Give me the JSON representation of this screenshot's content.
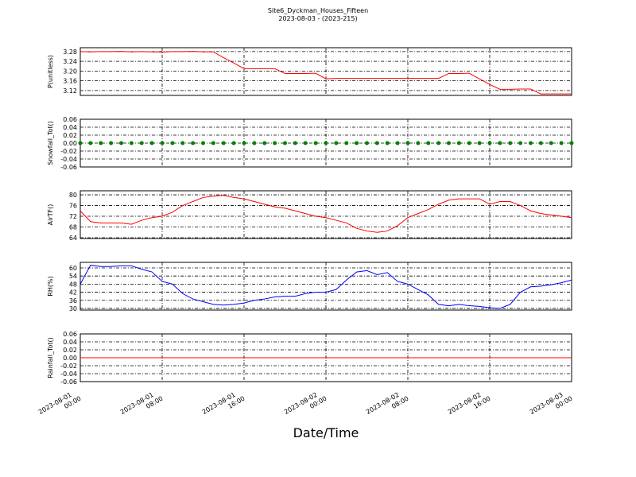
{
  "chart_data": [
    {
      "type": "line",
      "title": "Site6_Dyckman_Houses_Fifteen",
      "subtitle": "2023-08-03 - (2023-215)",
      "ylabel": "P(unitless)",
      "color": "#ff0000",
      "grid": true,
      "x": [
        "2023-08-01 00:00",
        "2023-08-01 01:00",
        "2023-08-01 02:00",
        "2023-08-01 03:00",
        "2023-08-01 04:00",
        "2023-08-01 05:00",
        "2023-08-01 06:00",
        "2023-08-01 07:00",
        "2023-08-01 08:00",
        "2023-08-01 09:00",
        "2023-08-01 10:00",
        "2023-08-01 11:00",
        "2023-08-01 12:00",
        "2023-08-01 13:00",
        "2023-08-01 14:00",
        "2023-08-01 15:00",
        "2023-08-01 16:00",
        "2023-08-01 17:00",
        "2023-08-01 18:00",
        "2023-08-01 19:00",
        "2023-08-01 20:00",
        "2023-08-01 21:00",
        "2023-08-01 22:00",
        "2023-08-01 23:00",
        "2023-08-02 00:00",
        "2023-08-02 01:00",
        "2023-08-02 02:00",
        "2023-08-02 03:00",
        "2023-08-02 04:00",
        "2023-08-02 05:00",
        "2023-08-02 06:00",
        "2023-08-02 07:00",
        "2023-08-02 08:00",
        "2023-08-02 09:00",
        "2023-08-02 10:00",
        "2023-08-02 11:00",
        "2023-08-02 12:00",
        "2023-08-02 13:00",
        "2023-08-02 14:00",
        "2023-08-02 15:00",
        "2023-08-02 16:00",
        "2023-08-02 17:00",
        "2023-08-02 18:00",
        "2023-08-02 19:00",
        "2023-08-02 20:00",
        "2023-08-02 21:00",
        "2023-08-02 22:00",
        "2023-08-02 23:00",
        "2023-08-03 00:00"
      ],
      "values": [
        3.28,
        3.279,
        3.28,
        3.28,
        3.281,
        3.279,
        3.28,
        3.279,
        3.278,
        3.28,
        3.28,
        3.281,
        3.279,
        3.279,
        3.255,
        3.233,
        3.21,
        3.21,
        3.21,
        3.21,
        3.19,
        3.19,
        3.19,
        3.191,
        3.168,
        3.17,
        3.17,
        3.17,
        3.17,
        3.17,
        3.17,
        3.17,
        3.17,
        3.17,
        3.17,
        3.17,
        3.19,
        3.19,
        3.191,
        3.168,
        3.145,
        3.125,
        3.125,
        3.126,
        3.126,
        3.106,
        3.106,
        3.106,
        3.106
      ],
      "xlim": [
        "2023-08-01 00:00",
        "2023-08-03 00:00"
      ],
      "xticks": [
        "2023-08-01 00:00",
        "2023-08-01 08:00",
        "2023-08-01 16:00",
        "2023-08-02 00:00",
        "2023-08-02 08:00",
        "2023-08-02 16:00",
        "2023-08-03 00:00"
      ],
      "ylim": [
        3.1,
        3.296
      ],
      "yticks": [
        3.12,
        3.16,
        {
          "value": 3.2,
          "label": "3.20"
        },
        3.24,
        3.28
      ]
    },
    {
      "type": "scatter",
      "ylabel": "Snowfall_Tot()",
      "color": "#008000",
      "grid": true,
      "x": [
        "2023-08-01 00:00",
        "2023-08-01 01:00",
        "2023-08-01 02:00",
        "2023-08-01 03:00",
        "2023-08-01 04:00",
        "2023-08-01 05:00",
        "2023-08-01 06:00",
        "2023-08-01 07:00",
        "2023-08-01 08:00",
        "2023-08-01 09:00",
        "2023-08-01 10:00",
        "2023-08-01 11:00",
        "2023-08-01 12:00",
        "2023-08-01 13:00",
        "2023-08-01 14:00",
        "2023-08-01 15:00",
        "2023-08-01 16:00",
        "2023-08-01 17:00",
        "2023-08-01 18:00",
        "2023-08-01 19:00",
        "2023-08-01 20:00",
        "2023-08-01 21:00",
        "2023-08-01 22:00",
        "2023-08-01 23:00",
        "2023-08-02 00:00",
        "2023-08-02 01:00",
        "2023-08-02 02:00",
        "2023-08-02 03:00",
        "2023-08-02 04:00",
        "2023-08-02 05:00",
        "2023-08-02 06:00",
        "2023-08-02 07:00",
        "2023-08-02 08:00",
        "2023-08-02 09:00",
        "2023-08-02 10:00",
        "2023-08-02 11:00",
        "2023-08-02 12:00",
        "2023-08-02 13:00",
        "2023-08-02 14:00",
        "2023-08-02 15:00",
        "2023-08-02 16:00",
        "2023-08-02 17:00",
        "2023-08-02 18:00",
        "2023-08-02 19:00",
        "2023-08-02 20:00",
        "2023-08-02 21:00",
        "2023-08-02 22:00",
        "2023-08-02 23:00",
        "2023-08-03 00:00"
      ],
      "values": [
        0,
        0,
        0,
        0,
        0,
        0,
        0,
        0,
        0,
        0,
        0,
        0,
        0,
        0,
        0,
        0,
        0,
        0,
        0,
        0,
        0,
        0,
        0,
        0,
        0,
        0,
        0,
        0,
        0,
        0,
        0,
        0,
        0,
        0,
        0,
        0,
        0,
        0,
        0,
        0,
        0,
        0,
        0,
        0,
        0,
        0,
        0,
        0,
        0
      ],
      "xlim": [
        "2023-08-01 00:00",
        "2023-08-03 00:00"
      ],
      "xticks": [
        "2023-08-01 00:00",
        "2023-08-01 08:00",
        "2023-08-01 16:00",
        "2023-08-02 00:00",
        "2023-08-02 08:00",
        "2023-08-02 16:00",
        "2023-08-03 00:00"
      ],
      "ylim": [
        -0.06,
        0.06
      ],
      "yticks": [
        -0.06,
        -0.04,
        -0.02,
        {
          "value": 0,
          "label": "0.00"
        },
        0.02,
        0.04,
        0.06
      ]
    },
    {
      "type": "line",
      "ylabel": "AirTF()",
      "color": "#ff0000",
      "grid": true,
      "x": [
        "2023-08-01 00:00",
        "2023-08-01 01:00",
        "2023-08-01 02:00",
        "2023-08-01 03:00",
        "2023-08-01 04:00",
        "2023-08-01 05:00",
        "2023-08-01 06:00",
        "2023-08-01 07:00",
        "2023-08-01 08:00",
        "2023-08-01 09:00",
        "2023-08-01 10:00",
        "2023-08-01 11:00",
        "2023-08-01 12:00",
        "2023-08-01 13:00",
        "2023-08-01 14:00",
        "2023-08-01 15:00",
        "2023-08-01 16:00",
        "2023-08-01 17:00",
        "2023-08-01 18:00",
        "2023-08-01 19:00",
        "2023-08-01 20:00",
        "2023-08-01 21:00",
        "2023-08-01 22:00",
        "2023-08-01 23:00",
        "2023-08-02 00:00",
        "2023-08-02 01:00",
        "2023-08-02 02:00",
        "2023-08-02 03:00",
        "2023-08-02 04:00",
        "2023-08-02 05:00",
        "2023-08-02 06:00",
        "2023-08-02 07:00",
        "2023-08-02 08:00",
        "2023-08-02 09:00",
        "2023-08-02 10:00",
        "2023-08-02 11:00",
        "2023-08-02 12:00",
        "2023-08-02 13:00",
        "2023-08-02 14:00",
        "2023-08-02 15:00",
        "2023-08-02 16:00",
        "2023-08-02 17:00",
        "2023-08-02 18:00",
        "2023-08-02 19:00",
        "2023-08-02 20:00",
        "2023-08-02 21:00",
        "2023-08-02 22:00",
        "2023-08-02 23:00",
        "2023-08-03 00:00"
      ],
      "values": [
        74,
        70,
        69.5,
        69.5,
        69.5,
        69,
        70.5,
        71.5,
        72,
        73.5,
        76,
        77.5,
        79,
        79.5,
        79.8,
        79,
        78.5,
        77.5,
        76.5,
        75.5,
        75,
        74,
        73,
        72,
        71.5,
        70.5,
        69.5,
        67.5,
        66.5,
        66,
        66.5,
        68.5,
        71.5,
        73,
        74.5,
        76.5,
        78,
        78.5,
        78.5,
        78.5,
        76.5,
        77.5,
        77.5,
        76,
        74,
        73,
        72.5,
        72,
        71.5
      ],
      "xlim": [
        "2023-08-01 00:00",
        "2023-08-03 00:00"
      ],
      "xticks": [
        "2023-08-01 00:00",
        "2023-08-01 08:00",
        "2023-08-01 16:00",
        "2023-08-02 00:00",
        "2023-08-02 08:00",
        "2023-08-02 16:00",
        "2023-08-03 00:00"
      ],
      "ylim": [
        63.7,
        81.5
      ],
      "yticks": [
        64,
        68,
        72,
        76,
        80
      ]
    },
    {
      "type": "line",
      "ylabel": "RH(%)",
      "color": "#0000ff",
      "grid": true,
      "x": [
        "2023-08-01 00:00",
        "2023-08-01 01:00",
        "2023-08-01 02:00",
        "2023-08-01 03:00",
        "2023-08-01 04:00",
        "2023-08-01 05:00",
        "2023-08-01 06:00",
        "2023-08-01 07:00",
        "2023-08-01 08:00",
        "2023-08-01 09:00",
        "2023-08-01 10:00",
        "2023-08-01 11:00",
        "2023-08-01 12:00",
        "2023-08-01 13:00",
        "2023-08-01 14:00",
        "2023-08-01 15:00",
        "2023-08-01 16:00",
        "2023-08-01 17:00",
        "2023-08-01 18:00",
        "2023-08-01 19:00",
        "2023-08-01 20:00",
        "2023-08-01 21:00",
        "2023-08-01 22:00",
        "2023-08-01 23:00",
        "2023-08-02 00:00",
        "2023-08-02 01:00",
        "2023-08-02 02:00",
        "2023-08-02 03:00",
        "2023-08-02 04:00",
        "2023-08-02 05:00",
        "2023-08-02 06:00",
        "2023-08-02 07:00",
        "2023-08-02 08:00",
        "2023-08-02 09:00",
        "2023-08-02 10:00",
        "2023-08-02 11:00",
        "2023-08-02 12:00",
        "2023-08-02 13:00",
        "2023-08-02 14:00",
        "2023-08-02 15:00",
        "2023-08-02 16:00",
        "2023-08-02 17:00",
        "2023-08-02 18:00",
        "2023-08-02 19:00",
        "2023-08-02 20:00",
        "2023-08-02 21:00",
        "2023-08-02 22:00",
        "2023-08-02 23:00",
        "2023-08-03 00:00"
      ],
      "values": [
        48,
        62,
        61,
        61,
        61.5,
        61.5,
        59,
        57,
        50,
        48,
        41,
        37,
        35,
        33,
        32.5,
        33,
        34,
        36,
        37,
        38.5,
        39,
        39,
        41,
        42,
        42,
        44,
        51,
        57,
        58,
        55,
        56.5,
        50,
        48,
        44,
        40,
        33,
        32,
        33,
        32,
        31.5,
        30.5,
        30,
        33,
        42,
        46,
        46.5,
        47.5,
        49,
        51
      ],
      "xlim": [
        "2023-08-01 00:00",
        "2023-08-03 00:00"
      ],
      "xticks": [
        "2023-08-01 00:00",
        "2023-08-01 08:00",
        "2023-08-01 16:00",
        "2023-08-02 00:00",
        "2023-08-02 08:00",
        "2023-08-02 16:00",
        "2023-08-03 00:00"
      ],
      "ylim": [
        28.8,
        64.1
      ],
      "yticks": [
        30,
        36,
        42,
        48,
        54,
        60
      ]
    },
    {
      "type": "line",
      "ylabel": "Rainfall_Tot()",
      "xlabel": "Date/Time",
      "color": "#ff0000",
      "grid": true,
      "x": [
        "2023-08-01 00:00",
        "2023-08-01 01:00",
        "2023-08-01 02:00",
        "2023-08-01 03:00",
        "2023-08-01 04:00",
        "2023-08-01 05:00",
        "2023-08-01 06:00",
        "2023-08-01 07:00",
        "2023-08-01 08:00",
        "2023-08-01 09:00",
        "2023-08-01 10:00",
        "2023-08-01 11:00",
        "2023-08-01 12:00",
        "2023-08-01 13:00",
        "2023-08-01 14:00",
        "2023-08-01 15:00",
        "2023-08-01 16:00",
        "2023-08-01 17:00",
        "2023-08-01 18:00",
        "2023-08-01 19:00",
        "2023-08-01 20:00",
        "2023-08-01 21:00",
        "2023-08-01 22:00",
        "2023-08-01 23:00",
        "2023-08-02 00:00",
        "2023-08-02 01:00",
        "2023-08-02 02:00",
        "2023-08-02 03:00",
        "2023-08-02 04:00",
        "2023-08-02 05:00",
        "2023-08-02 06:00",
        "2023-08-02 07:00",
        "2023-08-02 08:00",
        "2023-08-02 09:00",
        "2023-08-02 10:00",
        "2023-08-02 11:00",
        "2023-08-02 12:00",
        "2023-08-02 13:00",
        "2023-08-02 14:00",
        "2023-08-02 15:00",
        "2023-08-02 16:00",
        "2023-08-02 17:00",
        "2023-08-02 18:00",
        "2023-08-02 19:00",
        "2023-08-02 20:00",
        "2023-08-02 21:00",
        "2023-08-02 22:00",
        "2023-08-02 23:00",
        "2023-08-03 00:00"
      ],
      "values": [
        0,
        0,
        0,
        0,
        0,
        0,
        0,
        0,
        0,
        0,
        0,
        0,
        0,
        0,
        0,
        0,
        0,
        0,
        0,
        0,
        0,
        0,
        0,
        0,
        0,
        0,
        0,
        0,
        0,
        0,
        0,
        0,
        0,
        0,
        0,
        0,
        0,
        0,
        0,
        0,
        0,
        0,
        0,
        0,
        0,
        0,
        0,
        0,
        0
      ],
      "xlim": [
        "2023-08-01 00:00",
        "2023-08-03 00:00"
      ],
      "xticks": [
        {
          "value": "2023-08-01 00:00",
          "label": "2023-08-01\n00:00"
        },
        {
          "value": "2023-08-01 08:00",
          "label": "2023-08-01\n08:00"
        },
        {
          "value": "2023-08-01 16:00",
          "label": "2023-08-01\n16:00"
        },
        {
          "value": "2023-08-02 00:00",
          "label": "2023-08-02\n00:00"
        },
        {
          "value": "2023-08-02 08:00",
          "label": "2023-08-02\n08:00"
        },
        {
          "value": "2023-08-02 16:00",
          "label": "2023-08-02\n16:00"
        },
        {
          "value": "2023-08-03 00:00",
          "label": "2023-08-03\n00:00"
        }
      ],
      "ylim": [
        -0.06,
        0.06
      ],
      "yticks": [
        -0.06,
        -0.04,
        -0.02,
        {
          "value": 0,
          "label": "0.00"
        },
        0.02,
        0.04,
        0.06
      ]
    }
  ]
}
